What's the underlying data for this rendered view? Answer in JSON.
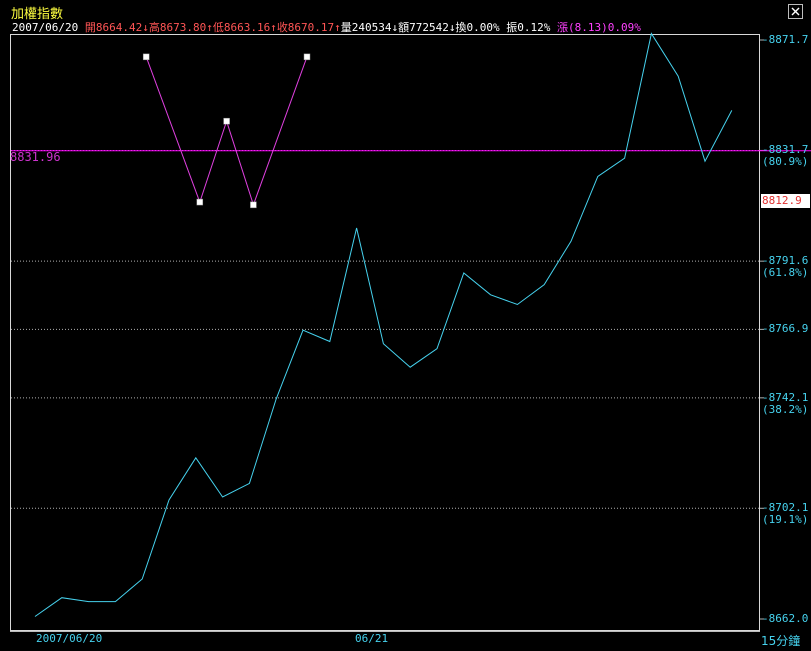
{
  "header": {
    "title": "加權指數",
    "date": "2007/06/20",
    "open": "開8664.42↓",
    "high": "高8673.80↑",
    "low": "低8663.16↑",
    "close": "收8670.17↑",
    "volume": "量240534↓",
    "amount": "額772542↓",
    "turnover": "換0.00%",
    "amplitude": "振0.12%",
    "change": "漲(8.13)0.09%"
  },
  "close_icon": "close-x-icon",
  "colors": {
    "background": "#000000",
    "price_line": "#46d2ee",
    "pattern_line": "#e040e0",
    "reference_line": "#ff00ff",
    "grid": "#b0b0b0",
    "up_text": "#ff5555",
    "title": "#ffff40"
  },
  "reference_line": {
    "value": "8831.96"
  },
  "last_price_label": "8812.9",
  "timeframe_label": "15分鐘",
  "chart_data": {
    "type": "line",
    "ylim": [
      8662.0,
      8871.7
    ],
    "y_ticks": [
      {
        "value": 8871.7,
        "label": "8871.7",
        "pct": ""
      },
      {
        "value": 8831.7,
        "label": "8831.7",
        "pct": "(80.9%)"
      },
      {
        "value": 8791.6,
        "label": "8791.6",
        "pct": "(61.8%)"
      },
      {
        "value": 8766.9,
        "label": "8766.9",
        "pct": ""
      },
      {
        "value": 8742.1,
        "label": "8742.1",
        "pct": "(38.2%)"
      },
      {
        "value": 8702.1,
        "label": "8702.1",
        "pct": "(19.1%)"
      },
      {
        "value": 8662.0,
        "label": "8662.0",
        "pct": ""
      }
    ],
    "x_labels": [
      {
        "index": 0,
        "label": "2007/06/20"
      },
      {
        "index": 12,
        "label": "06/21"
      }
    ],
    "series": [
      {
        "values": [
          8662.9,
          8669.7,
          8668.3,
          8668.3,
          8676.5,
          8705.1,
          8720.4,
          8706.2,
          8711.1,
          8741.7,
          8766.6,
          8762.5,
          8803.6,
          8761.7,
          8753.2,
          8759.9,
          8787.3,
          8779.4,
          8775.9,
          8783.1,
          8798.8,
          8822.3,
          8828.9,
          8874.0,
          8858.6,
          8827.8,
          8846.2
        ]
      }
    ],
    "pattern": {
      "shape": "W",
      "values": [
        8865.6,
        8813.0,
        8842.3,
        8812.0,
        8865.6
      ],
      "x_index": [
        4.0,
        6.0,
        7.0,
        8.0,
        10.0
      ]
    },
    "reference": 8831.96
  }
}
